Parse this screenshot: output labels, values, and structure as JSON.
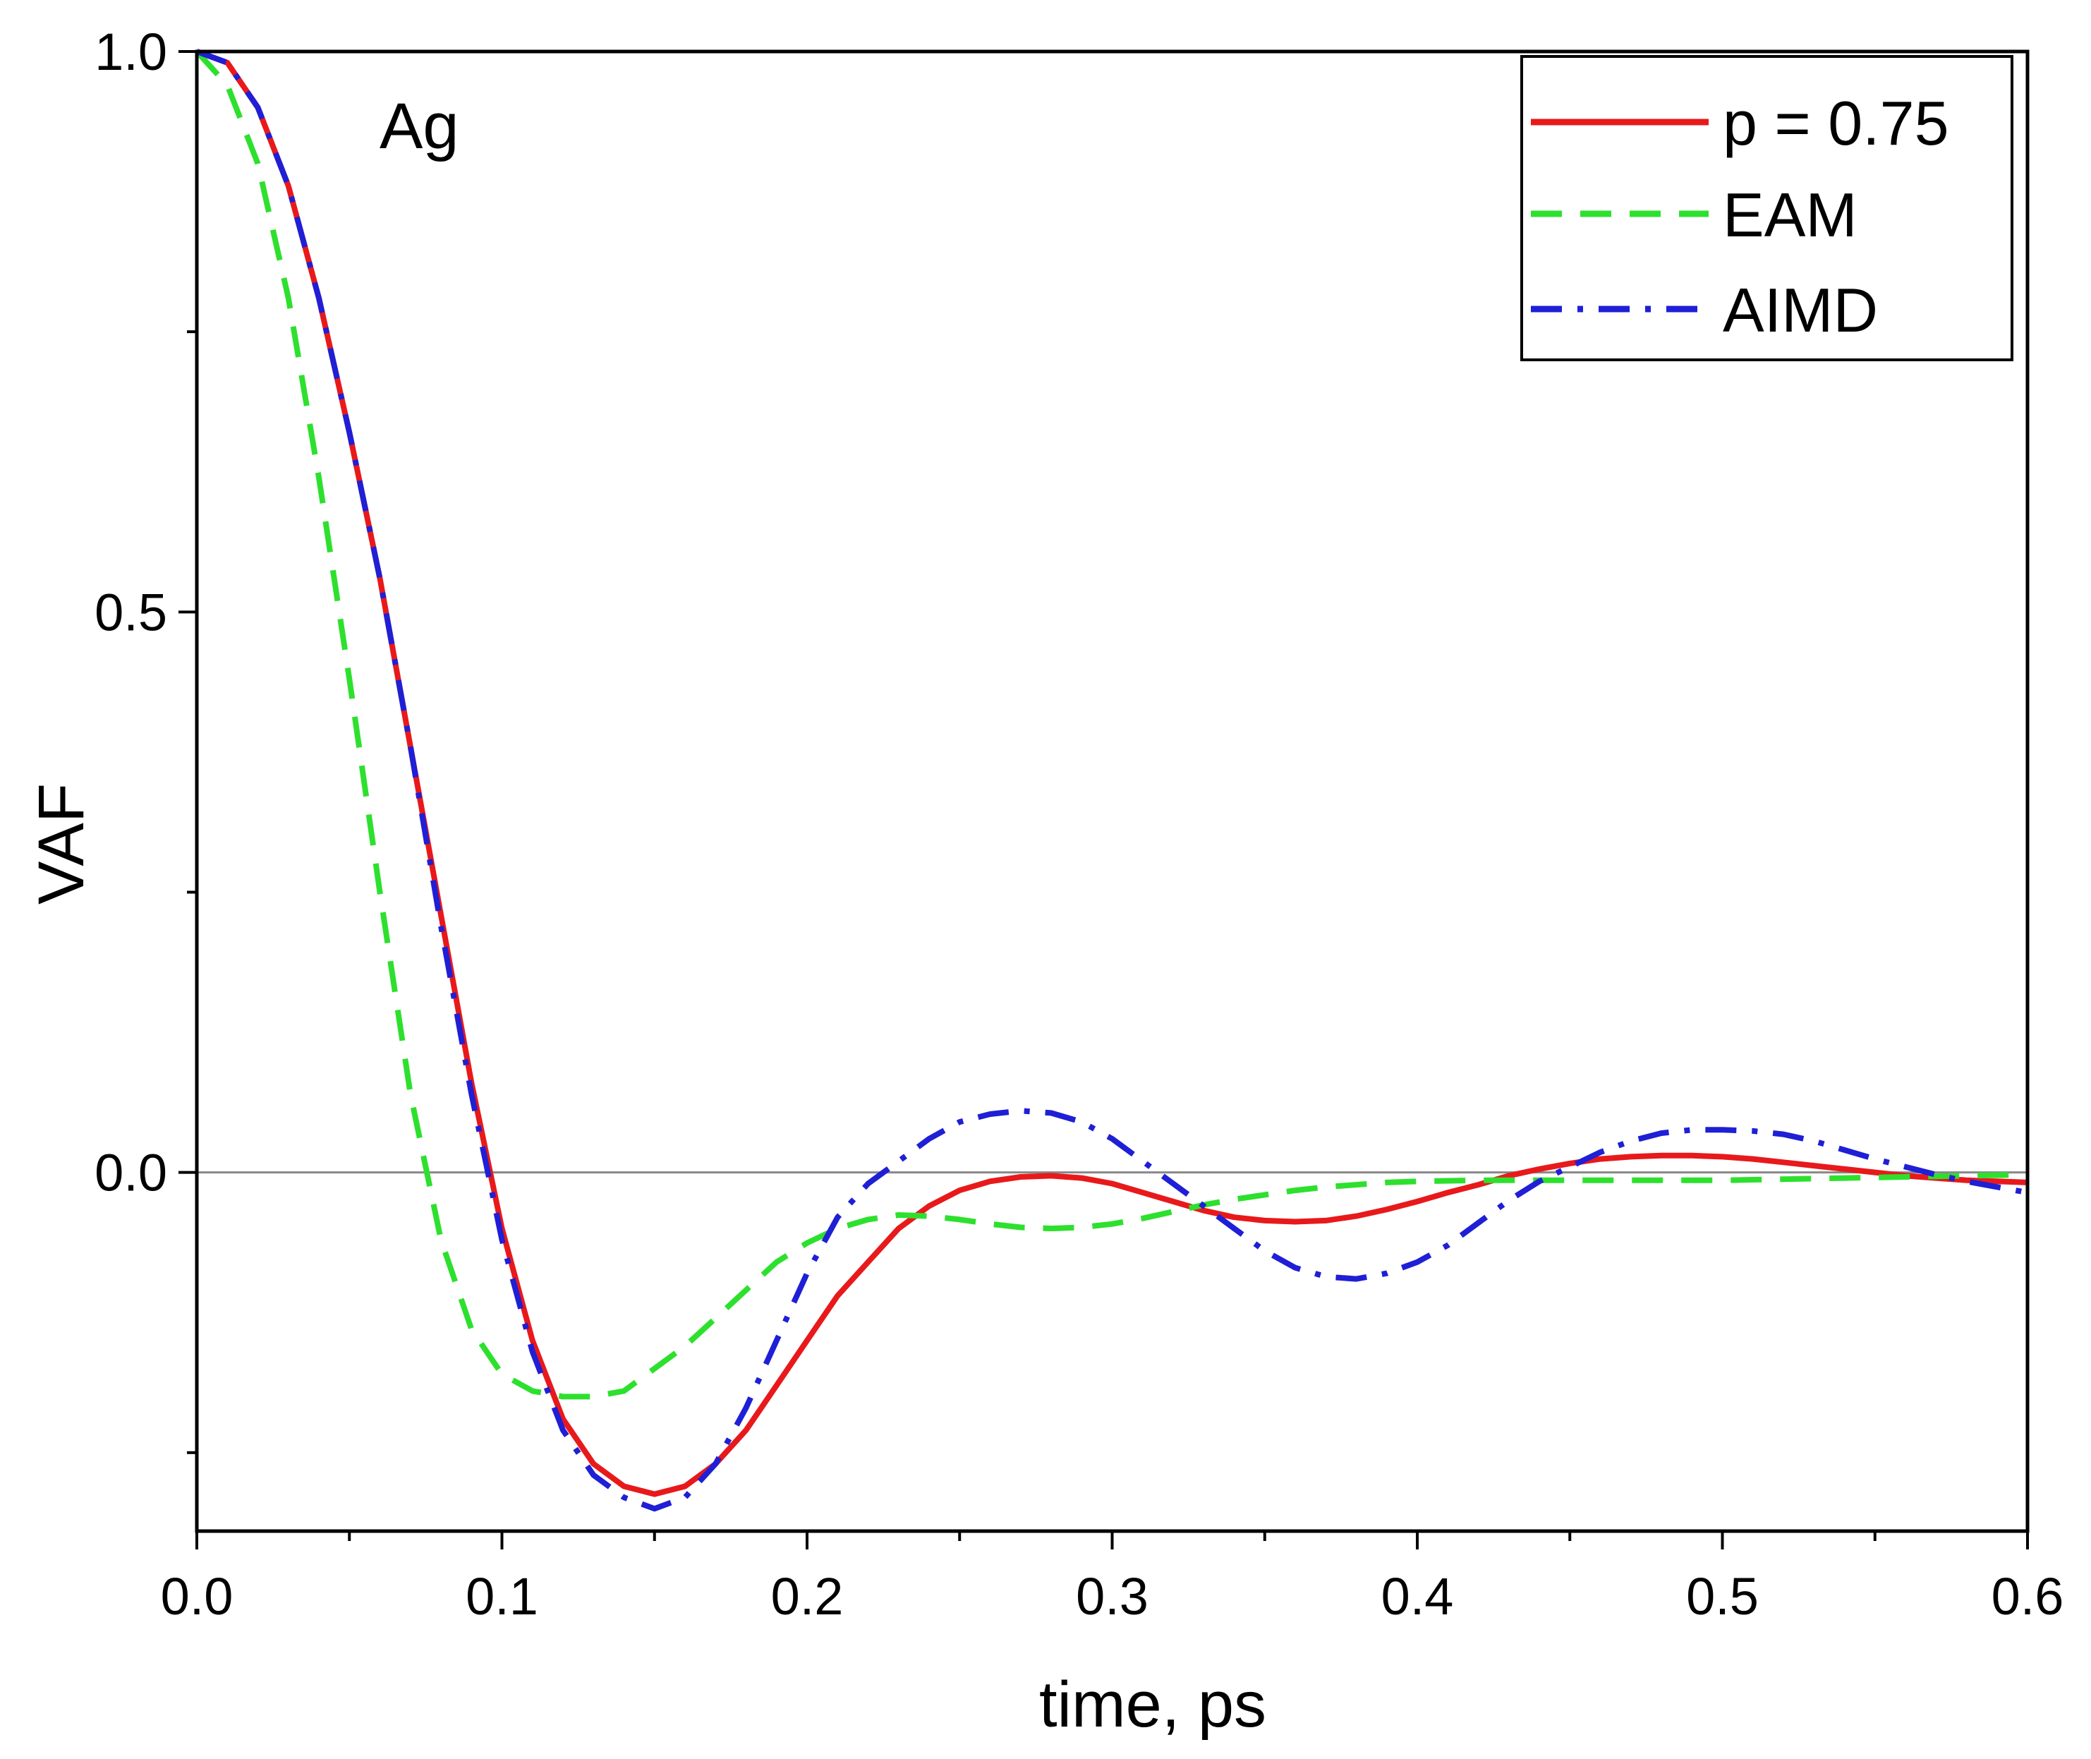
{
  "chart_data": {
    "type": "line",
    "title": "",
    "annotation": "Ag",
    "xlabel": "time, ps",
    "ylabel": "VAF",
    "xlim": [
      0.0,
      0.6
    ],
    "ylim": [
      -0.32,
      1.0
    ],
    "x_major_ticks": [
      0.0,
      0.1,
      0.2,
      0.3,
      0.4,
      0.5,
      0.6
    ],
    "x_tick_labels": [
      "0.0",
      "0.1",
      "0.2",
      "0.3",
      "0.4",
      "0.5",
      "0.6"
    ],
    "x_minor_ticks": [
      0.05,
      0.15,
      0.25,
      0.35,
      0.45,
      0.55
    ],
    "y_major_ticks": [
      0.0,
      0.5,
      1.0
    ],
    "y_tick_labels": [
      "0.0",
      "0.5",
      "1.0"
    ],
    "y_minor_ticks": [
      -0.25,
      0.25,
      0.75
    ],
    "zero_line": true,
    "grid": false,
    "legend_position": "top-right",
    "series": [
      {
        "name": "p = 0.75",
        "color": "#e8191b",
        "dash": "solid",
        "points": [
          [
            0.0,
            1.0
          ],
          [
            0.01,
            0.99
          ],
          [
            0.02,
            0.95
          ],
          [
            0.03,
            0.88
          ],
          [
            0.04,
            0.78
          ],
          [
            0.05,
            0.66
          ],
          [
            0.06,
            0.53
          ],
          [
            0.07,
            0.38
          ],
          [
            0.08,
            0.23
          ],
          [
            0.09,
            0.08
          ],
          [
            0.1,
            -0.05
          ],
          [
            0.11,
            -0.15
          ],
          [
            0.12,
            -0.22
          ],
          [
            0.13,
            -0.26
          ],
          [
            0.14,
            -0.28
          ],
          [
            0.15,
            -0.287
          ],
          [
            0.16,
            -0.28
          ],
          [
            0.17,
            -0.26
          ],
          [
            0.18,
            -0.23
          ],
          [
            0.19,
            -0.19
          ],
          [
            0.2,
            -0.15
          ],
          [
            0.21,
            -0.11
          ],
          [
            0.22,
            -0.08
          ],
          [
            0.23,
            -0.05
          ],
          [
            0.24,
            -0.03
          ],
          [
            0.25,
            -0.016
          ],
          [
            0.26,
            -0.008
          ],
          [
            0.27,
            -0.004
          ],
          [
            0.28,
            -0.003
          ],
          [
            0.29,
            -0.005
          ],
          [
            0.3,
            -0.01
          ],
          [
            0.31,
            -0.018
          ],
          [
            0.32,
            -0.026
          ],
          [
            0.33,
            -0.034
          ],
          [
            0.34,
            -0.04
          ],
          [
            0.35,
            -0.043
          ],
          [
            0.36,
            -0.044
          ],
          [
            0.37,
            -0.043
          ],
          [
            0.38,
            -0.039
          ],
          [
            0.39,
            -0.033
          ],
          [
            0.4,
            -0.026
          ],
          [
            0.41,
            -0.018
          ],
          [
            0.42,
            -0.011
          ],
          [
            0.43,
            -0.003
          ],
          [
            0.44,
            0.003
          ],
          [
            0.45,
            0.008
          ],
          [
            0.46,
            0.012
          ],
          [
            0.47,
            0.014
          ],
          [
            0.48,
            0.015
          ],
          [
            0.49,
            0.015
          ],
          [
            0.5,
            0.014
          ],
          [
            0.51,
            0.012
          ],
          [
            0.52,
            0.009
          ],
          [
            0.53,
            0.006
          ],
          [
            0.54,
            0.003
          ],
          [
            0.55,
            0.0
          ],
          [
            0.56,
            -0.003
          ],
          [
            0.57,
            -0.005
          ],
          [
            0.58,
            -0.007
          ],
          [
            0.59,
            -0.008
          ],
          [
            0.6,
            -0.009
          ]
        ]
      },
      {
        "name": "EAM",
        "color": "#2ee02e",
        "dash": "dashed",
        "points": [
          [
            0.0,
            1.0
          ],
          [
            0.01,
            0.97
          ],
          [
            0.02,
            0.9
          ],
          [
            0.03,
            0.78
          ],
          [
            0.04,
            0.62
          ],
          [
            0.05,
            0.44
          ],
          [
            0.06,
            0.25
          ],
          [
            0.07,
            0.07
          ],
          [
            0.08,
            -0.06
          ],
          [
            0.09,
            -0.14
          ],
          [
            0.1,
            -0.18
          ],
          [
            0.11,
            -0.195
          ],
          [
            0.12,
            -0.2
          ],
          [
            0.13,
            -0.2
          ],
          [
            0.14,
            -0.195
          ],
          [
            0.15,
            -0.175
          ],
          [
            0.16,
            -0.155
          ],
          [
            0.17,
            -0.13
          ],
          [
            0.18,
            -0.105
          ],
          [
            0.19,
            -0.08
          ],
          [
            0.2,
            -0.063
          ],
          [
            0.21,
            -0.05
          ],
          [
            0.22,
            -0.042
          ],
          [
            0.23,
            -0.038
          ],
          [
            0.24,
            -0.039
          ],
          [
            0.25,
            -0.042
          ],
          [
            0.26,
            -0.046
          ],
          [
            0.27,
            -0.049
          ],
          [
            0.28,
            -0.05
          ],
          [
            0.29,
            -0.049
          ],
          [
            0.3,
            -0.046
          ],
          [
            0.31,
            -0.041
          ],
          [
            0.32,
            -0.035
          ],
          [
            0.33,
            -0.029
          ],
          [
            0.34,
            -0.024
          ],
          [
            0.35,
            -0.02
          ],
          [
            0.36,
            -0.016
          ],
          [
            0.37,
            -0.013
          ],
          [
            0.38,
            -0.011
          ],
          [
            0.39,
            -0.009
          ],
          [
            0.4,
            -0.008
          ],
          [
            0.42,
            -0.007
          ],
          [
            0.44,
            -0.007
          ],
          [
            0.46,
            -0.007
          ],
          [
            0.48,
            -0.007
          ],
          [
            0.5,
            -0.007
          ],
          [
            0.52,
            -0.006
          ],
          [
            0.54,
            -0.005
          ],
          [
            0.56,
            -0.004
          ],
          [
            0.58,
            -0.003
          ],
          [
            0.6,
            -0.002
          ]
        ]
      },
      {
        "name": "AIMD",
        "color": "#1f1fd6",
        "dash": "dashdot",
        "points": [
          [
            0.0,
            1.0
          ],
          [
            0.01,
            0.99
          ],
          [
            0.02,
            0.95
          ],
          [
            0.03,
            0.88
          ],
          [
            0.04,
            0.78
          ],
          [
            0.05,
            0.66
          ],
          [
            0.06,
            0.53
          ],
          [
            0.07,
            0.38
          ],
          [
            0.08,
            0.22
          ],
          [
            0.09,
            0.07
          ],
          [
            0.1,
            -0.06
          ],
          [
            0.11,
            -0.16
          ],
          [
            0.12,
            -0.23
          ],
          [
            0.13,
            -0.27
          ],
          [
            0.14,
            -0.29
          ],
          [
            0.15,
            -0.3
          ],
          [
            0.16,
            -0.29
          ],
          [
            0.17,
            -0.26
          ],
          [
            0.18,
            -0.21
          ],
          [
            0.19,
            -0.15
          ],
          [
            0.2,
            -0.09
          ],
          [
            0.21,
            -0.04
          ],
          [
            0.22,
            -0.01
          ],
          [
            0.23,
            0.01
          ],
          [
            0.24,
            0.03
          ],
          [
            0.25,
            0.045
          ],
          [
            0.26,
            0.052
          ],
          [
            0.27,
            0.055
          ],
          [
            0.28,
            0.053
          ],
          [
            0.29,
            0.045
          ],
          [
            0.3,
            0.03
          ],
          [
            0.31,
            0.01
          ],
          [
            0.32,
            -0.01
          ],
          [
            0.33,
            -0.03
          ],
          [
            0.34,
            -0.05
          ],
          [
            0.35,
            -0.07
          ],
          [
            0.36,
            -0.085
          ],
          [
            0.37,
            -0.093
          ],
          [
            0.38,
            -0.095
          ],
          [
            0.39,
            -0.09
          ],
          [
            0.4,
            -0.08
          ],
          [
            0.41,
            -0.065
          ],
          [
            0.42,
            -0.045
          ],
          [
            0.43,
            -0.025
          ],
          [
            0.44,
            -0.008
          ],
          [
            0.45,
            0.005
          ],
          [
            0.46,
            0.018
          ],
          [
            0.47,
            0.028
          ],
          [
            0.48,
            0.035
          ],
          [
            0.49,
            0.038
          ],
          [
            0.5,
            0.038
          ],
          [
            0.51,
            0.037
          ],
          [
            0.52,
            0.034
          ],
          [
            0.53,
            0.028
          ],
          [
            0.54,
            0.02
          ],
          [
            0.55,
            0.012
          ],
          [
            0.56,
            0.005
          ],
          [
            0.57,
            -0.002
          ],
          [
            0.58,
            -0.008
          ],
          [
            0.59,
            -0.013
          ],
          [
            0.6,
            -0.018
          ]
        ]
      }
    ]
  }
}
